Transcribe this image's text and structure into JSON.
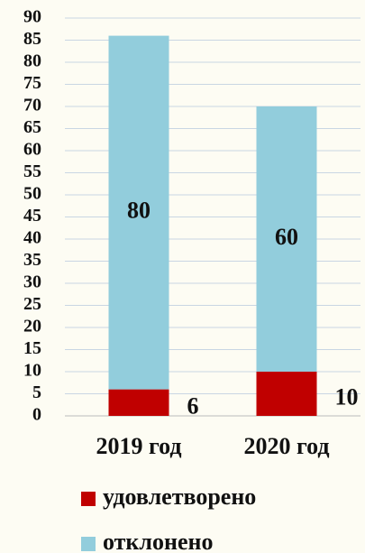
{
  "chart_data": {
    "type": "stacked_bar",
    "categories": [
      "2019 год",
      "2020 год"
    ],
    "series": [
      {
        "name": "удовлетворено",
        "color": "#c00000",
        "values": [
          6,
          10
        ]
      },
      {
        "name": "отклонено",
        "color": "#92cddc",
        "values": [
          80,
          60
        ]
      }
    ],
    "ylim": [
      0,
      90
    ],
    "yticks": [
      0,
      5,
      10,
      15,
      20,
      25,
      30,
      35,
      40,
      45,
      50,
      55,
      60,
      65,
      70,
      75,
      80,
      85,
      90
    ],
    "grid": true,
    "legend": "bottom"
  }
}
